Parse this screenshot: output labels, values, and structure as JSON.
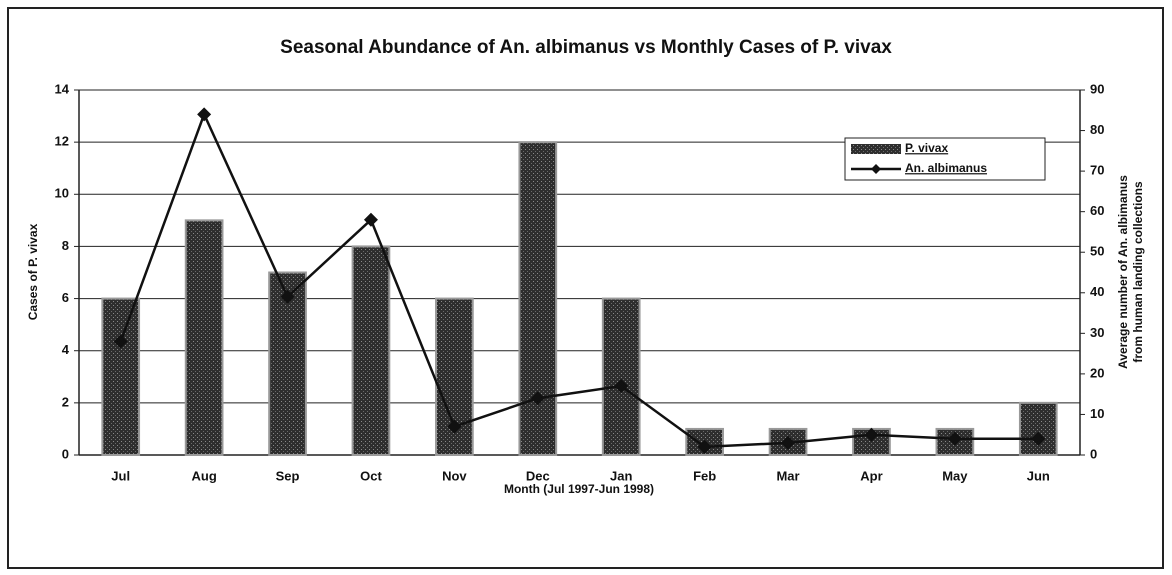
{
  "chart_data": {
    "type": "bar",
    "title": "Seasonal Abundance of An. albimanus vs Monthly Cases of P. vivax",
    "xlabel": "Month (Jul 1997-Jun 1998)",
    "ylabel": "Cases of P. vivax",
    "y2label": [
      "Average number of An. albimanus",
      "from human landing collections"
    ],
    "categories": [
      "Jul",
      "Aug",
      "Sep",
      "Oct",
      "Nov",
      "Dec",
      "Jan",
      "Feb",
      "Mar",
      "Apr",
      "May",
      "Jun"
    ],
    "series": [
      {
        "name": "P. vivax",
        "type": "bar",
        "color": "#3a3a3a",
        "values": [
          6,
          9,
          7,
          8,
          6,
          12,
          6,
          1,
          1,
          1,
          1,
          2
        ]
      },
      {
        "name": "An. albimanus",
        "type": "line",
        "axis": "y2",
        "color": "#111111",
        "values": [
          28,
          84,
          39,
          58,
          7,
          14,
          17,
          2,
          3,
          5,
          4,
          4
        ]
      }
    ],
    "ylim": [
      0,
      14
    ],
    "yticks": [
      0,
      2,
      4,
      6,
      8,
      10,
      12,
      14
    ],
    "y2lim": [
      0,
      90
    ],
    "y2ticks": [
      0,
      10,
      20,
      30,
      40,
      50,
      60,
      70,
      80,
      90
    ],
    "grid": true,
    "legend": "upper right"
  }
}
